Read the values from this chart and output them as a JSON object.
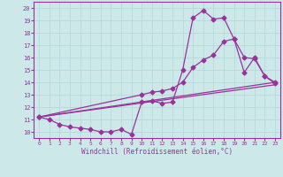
{
  "xlabel": "Windchill (Refroidissement éolien,°C)",
  "bg_color": "#cce8e8",
  "line_color": "#993399",
  "xlim": [
    -0.5,
    23.5
  ],
  "ylim": [
    9.5,
    20.5
  ],
  "xticks": [
    0,
    1,
    2,
    3,
    4,
    5,
    6,
    7,
    8,
    9,
    10,
    11,
    12,
    13,
    14,
    15,
    16,
    17,
    18,
    19,
    20,
    21,
    22,
    23
  ],
  "yticks": [
    10,
    11,
    12,
    13,
    14,
    15,
    16,
    17,
    18,
    19,
    20
  ],
  "curve1_x": [
    0,
    1,
    2,
    3,
    4,
    5,
    6,
    7,
    8,
    9,
    10,
    11,
    12,
    13,
    14,
    15,
    16,
    17,
    18,
    19,
    20,
    21,
    22,
    23
  ],
  "curve1_y": [
    11.2,
    11.0,
    10.6,
    10.4,
    10.3,
    10.2,
    10.0,
    10.0,
    10.2,
    9.8,
    12.4,
    12.5,
    12.3,
    12.4,
    15.0,
    19.2,
    19.8,
    19.1,
    19.2,
    17.5,
    14.8,
    16.0,
    14.5,
    14.0
  ],
  "curve2_x": [
    0,
    10,
    11,
    12,
    13,
    14,
    15,
    16,
    17,
    18,
    19,
    20,
    21,
    22,
    23
  ],
  "curve2_y": [
    11.2,
    13.0,
    13.2,
    13.3,
    13.5,
    14.0,
    15.2,
    15.8,
    16.2,
    17.3,
    17.5,
    16.0,
    15.9,
    14.5,
    13.9
  ],
  "curve3_x": [
    0,
    23
  ],
  "curve3_y": [
    11.2,
    13.8
  ],
  "curve4_x": [
    0,
    23
  ],
  "curve4_y": [
    11.2,
    14.0
  ]
}
